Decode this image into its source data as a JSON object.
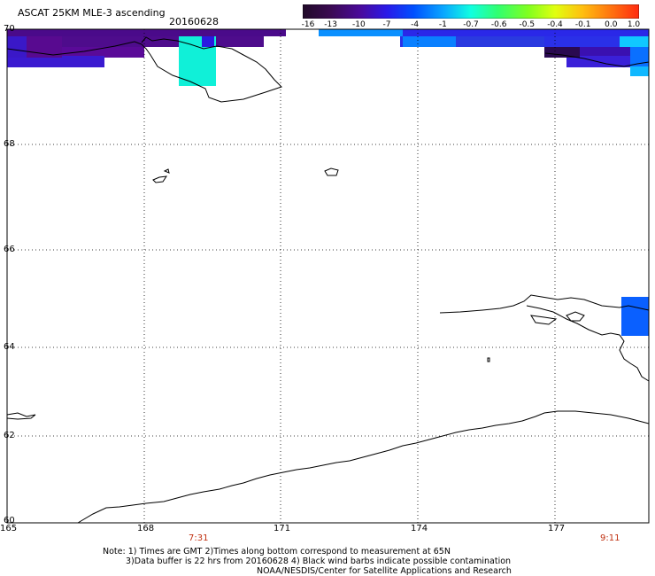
{
  "header": {
    "title": "ASCAT 25KM MLE-3 ascending",
    "date": "20160628"
  },
  "colorbar": {
    "labels": [
      "-16",
      "-13",
      "-10",
      "-7",
      "-4",
      "-1",
      "-0.7",
      "-0.6",
      "-0.5",
      "-0.4",
      "-0.1",
      "0.0",
      "1.0"
    ],
    "colors": [
      "#2a0a30",
      "#3e0a5c",
      "#4a0aa0",
      "#2a1ae0",
      "#0050ff",
      "#0aa0ff",
      "#10ffe0",
      "#30ff60",
      "#80ff20",
      "#e0ff10",
      "#ffc010",
      "#ff7010",
      "#ff2a10"
    ]
  },
  "map": {
    "lat_labels": [
      "70",
      "68",
      "66",
      "64",
      "62",
      "60"
    ],
    "lon_labels": [
      "165",
      "168",
      "171",
      "174",
      "177"
    ],
    "time_labels": [
      "7:31",
      "9:11"
    ]
  },
  "notes": [
    "Note: 1) Times are GMT 2)Times along bottom correspond to measurement at 65N",
    "3)Data buffer is 22 hrs from 20160628 4) Black wind barbs indicate possible contamination",
    "NOAA/NESDIS/Center for Satellite Applications and Research"
  ]
}
